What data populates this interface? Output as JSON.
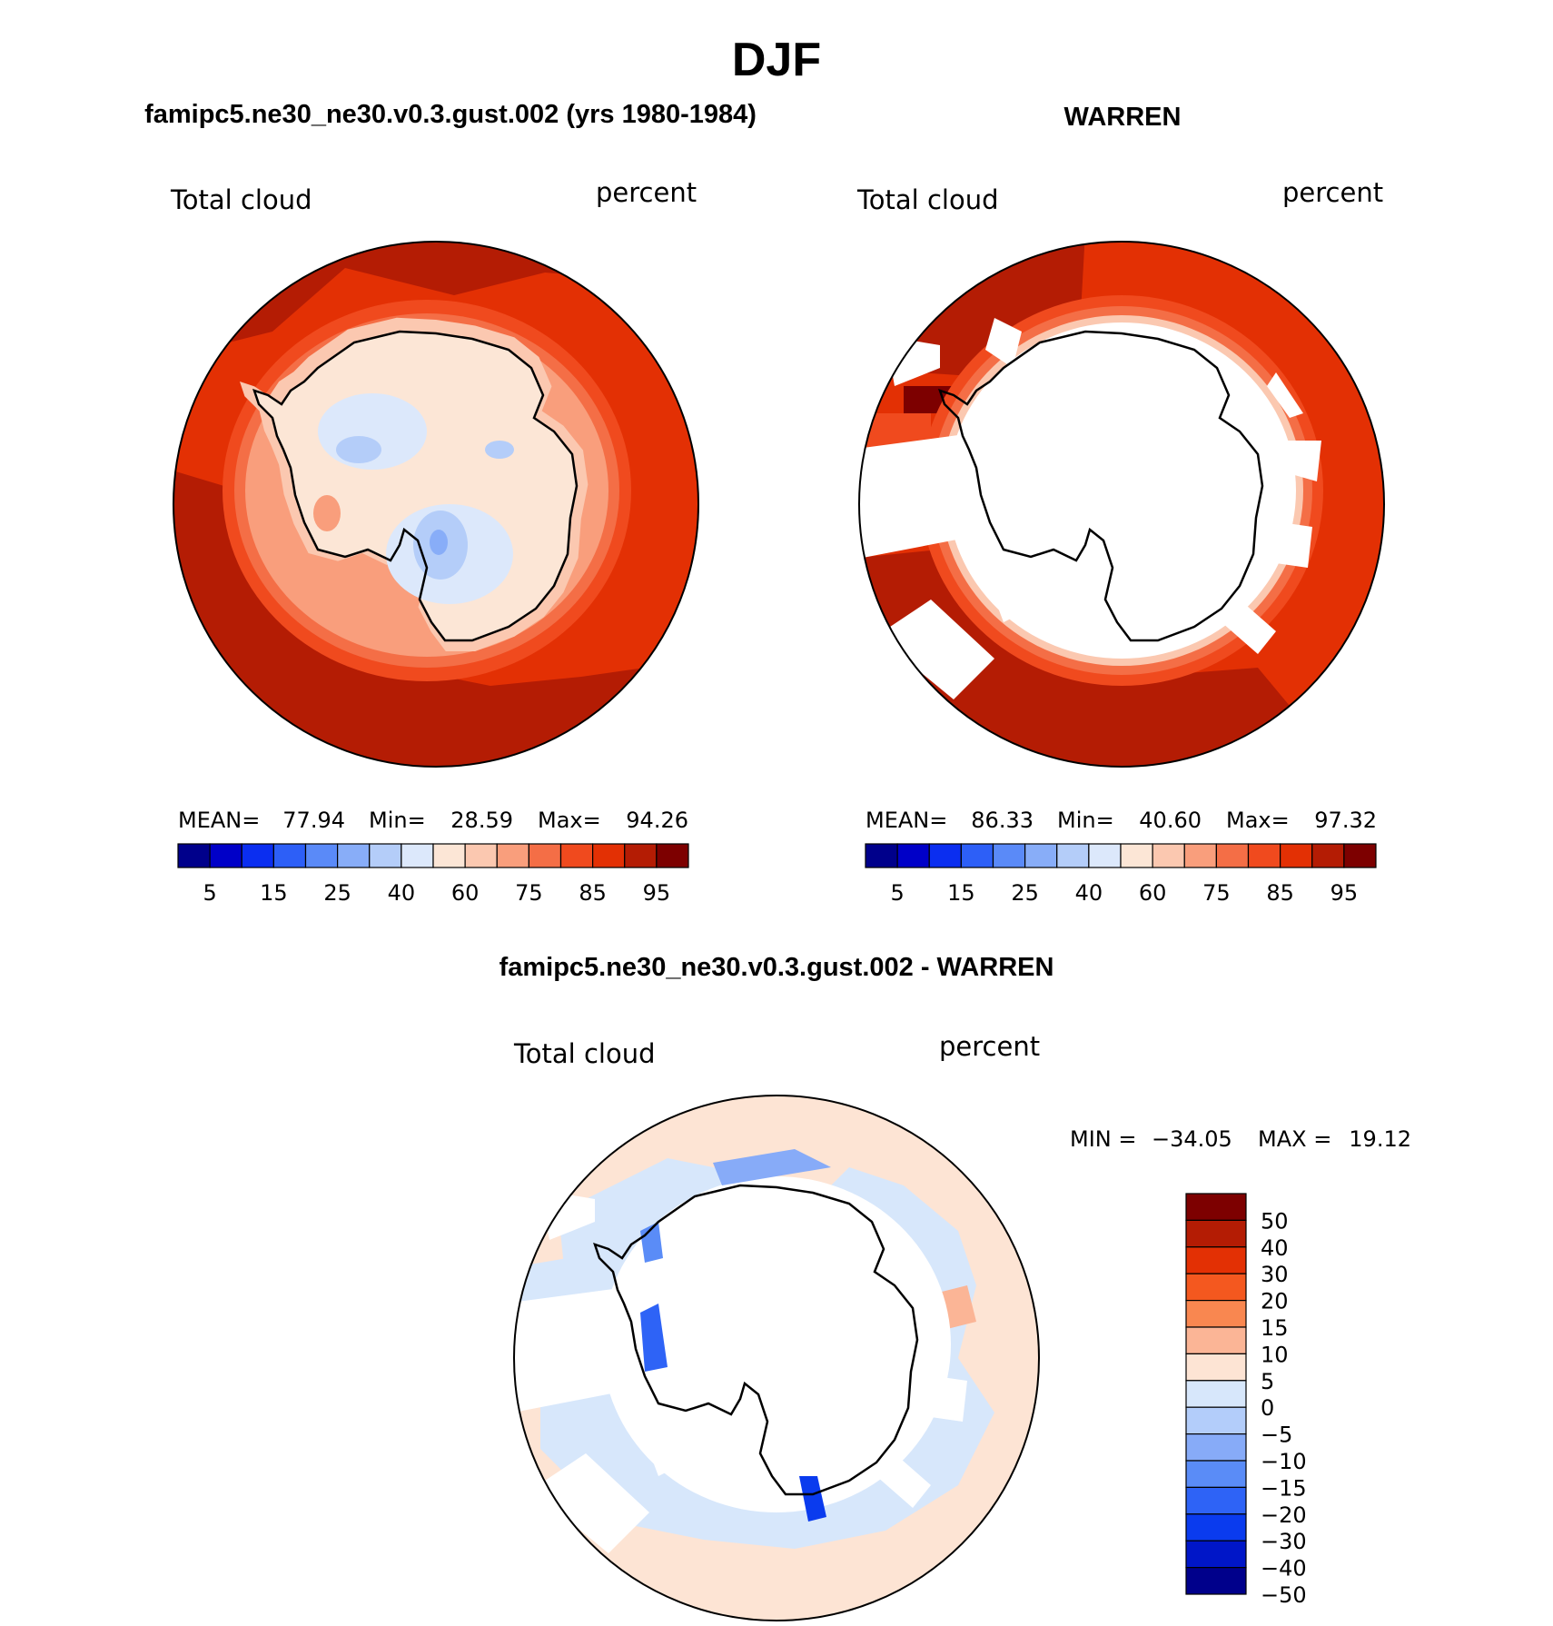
{
  "figure": {
    "title": "DJF",
    "panel_titles": {
      "model": "famipc5.ne30_ne30.v0.3.gust.002 (yrs 1980-1984)",
      "obs": "WARREN",
      "diff": "famipc5.ne30_ne30.v0.3.gust.002 - WARREN"
    }
  },
  "chart_data": [
    {
      "type": "heatmap",
      "projection": "south-polar-stereographic",
      "title": "famipc5.ne30_ne30.v0.3.gust.002 (yrs 1980-1984)",
      "variable": "Total cloud",
      "units": "percent",
      "stats": {
        "mean_label": "MEAN=",
        "mean": "77.94",
        "min_label": "Min=",
        "min": "28.59",
        "max_label": "Max=",
        "max": "94.26"
      },
      "colorbar": {
        "levels": [
          "5",
          "15",
          "25",
          "40",
          "60",
          "75",
          "85",
          "95"
        ],
        "colors": [
          "#00008b",
          "#0000c8",
          "#0b2ef0",
          "#2d5ff7",
          "#5a8af8",
          "#88adf8",
          "#b4cdf9",
          "#dce8fb",
          "#fce6d6",
          "#fbc8b0",
          "#f99e7c",
          "#f46e46",
          "#f04a1e",
          "#e33004",
          "#b41c04",
          "#7d0000"
        ],
        "orientation": "horizontal"
      }
    },
    {
      "type": "heatmap",
      "projection": "south-polar-stereographic",
      "title": "WARREN",
      "variable": "Total cloud",
      "units": "percent",
      "stats": {
        "mean_label": "MEAN=",
        "mean": "86.33",
        "min_label": "Min=",
        "min": "40.60",
        "max_label": "Max=",
        "max": "97.32"
      },
      "colorbar": {
        "levels": [
          "5",
          "15",
          "25",
          "40",
          "60",
          "75",
          "85",
          "95"
        ],
        "colors": [
          "#00008b",
          "#0000c8",
          "#0b2ef0",
          "#2d5ff7",
          "#5a8af8",
          "#88adf8",
          "#b4cdf9",
          "#dce8fb",
          "#fce6d6",
          "#fbc8b0",
          "#f99e7c",
          "#f46e46",
          "#f04a1e",
          "#e33004",
          "#b41c04",
          "#7d0000"
        ],
        "orientation": "horizontal"
      }
    },
    {
      "type": "heatmap",
      "projection": "south-polar-stereographic",
      "title": "famipc5.ne30_ne30.v0.3.gust.002 - WARREN",
      "variable": "Total cloud",
      "units": "percent",
      "stats": {
        "min_label": "MIN =",
        "min": "−34.05",
        "max_label": "MAX =",
        "max": "19.12"
      },
      "colorbar": {
        "levels": [
          "50",
          "40",
          "30",
          "20",
          "15",
          "10",
          "5",
          "0",
          "−5",
          "−10",
          "−15",
          "−20",
          "−30",
          "−40",
          "−50"
        ],
        "colors": [
          "#7d0000",
          "#b41c04",
          "#e33004",
          "#f4581f",
          "#f98750",
          "#fbb596",
          "#fde4d4",
          "#d7e7fb",
          "#b3cdfa",
          "#87abf8",
          "#5a8cf7",
          "#2e63f6",
          "#0a3bee",
          "#0016c8",
          "#00008b"
        ],
        "orientation": "vertical"
      }
    }
  ]
}
